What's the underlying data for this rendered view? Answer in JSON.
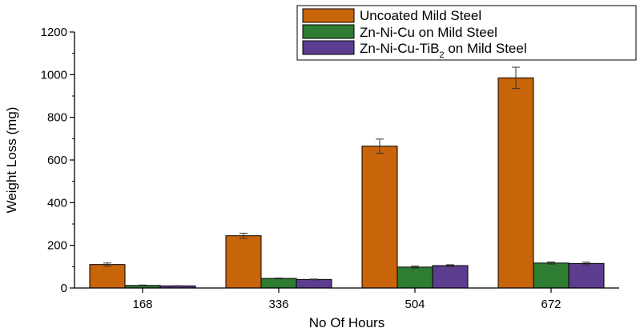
{
  "chart_data": {
    "type": "bar",
    "title": "",
    "xlabel": "No Of Hours",
    "ylabel": "Weight Loss (mg)",
    "categories": [
      "168",
      "336",
      "504",
      "672"
    ],
    "ylim": [
      0,
      1200
    ],
    "yticks": [
      0,
      200,
      400,
      600,
      800,
      1000,
      1200
    ],
    "grid": false,
    "legend_position": "top-right",
    "series": [
      {
        "name": "Uncoated Mild Steel",
        "legend_main": "Uncoated Mild Steel",
        "legend_sub": "",
        "legend_tail": "",
        "color": "#c8640a",
        "values": [
          110,
          245,
          665,
          985
        ],
        "errors": [
          7,
          12,
          33,
          50
        ]
      },
      {
        "name": "Zn-Ni-Cu on Mild Steel",
        "legend_main": "Zn-Ni-Cu on Mild Steel",
        "legend_sub": "",
        "legend_tail": "",
        "color": "#2e7d32",
        "values": [
          12,
          45,
          98,
          117
        ],
        "errors": [
          2,
          2,
          5,
          5
        ]
      },
      {
        "name": "Zn-Ni-Cu-TiB2 on Mild Steel",
        "legend_main": "Zn-Ni-Cu-TiB",
        "legend_sub": "2",
        "legend_tail": " on Mild Steel",
        "color": "#5c3d8f",
        "values": [
          10,
          40,
          105,
          115
        ],
        "errors": [
          1,
          2,
          4,
          6
        ]
      }
    ]
  }
}
